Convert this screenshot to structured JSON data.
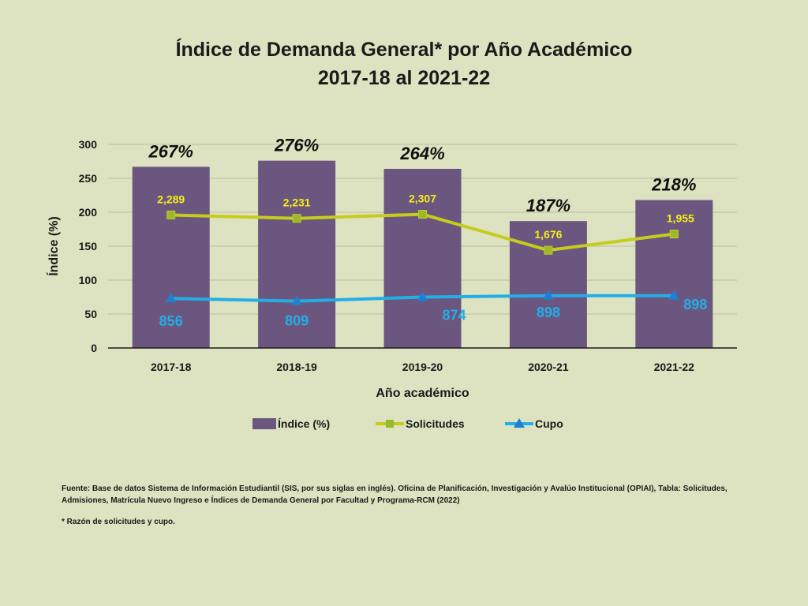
{
  "title_line1": "Índice de Demanda General* por Año Académico",
  "title_line2": "2017-18 al 2021-22",
  "chart_data": {
    "type": "bar",
    "categories": [
      "2017-18",
      "2018-19",
      "2019-20",
      "2020-21",
      "2021-22"
    ],
    "xlabel": "Año académico",
    "ylabel": "Índice (%)",
    "ylim": [
      0,
      300
    ],
    "yticks": [
      0,
      50,
      100,
      150,
      200,
      250,
      300
    ],
    "grid": true,
    "legend_position": "bottom",
    "series": [
      {
        "name": "Índice (%)",
        "kind": "bar",
        "color": "#6b567f",
        "values": [
          267,
          276,
          264,
          187,
          218
        ],
        "labels": [
          "267%",
          "276%",
          "264%",
          "187%",
          "218%"
        ]
      },
      {
        "name": "Solicitudes",
        "kind": "line",
        "marker": "square",
        "color": "#c5cc1e",
        "label_color": "#f5ee19",
        "values": [
          196,
          191,
          197,
          144,
          168
        ],
        "labels": [
          "2,289",
          "2,231",
          "2,307",
          "1,676",
          "1,955"
        ]
      },
      {
        "name": "Cupo",
        "kind": "line",
        "marker": "triangle",
        "color": "#23aee8",
        "label_color": "#23aee8",
        "values": [
          73,
          69,
          75,
          77,
          77
        ],
        "labels": [
          "856",
          "809",
          "874",
          "898",
          "898"
        ]
      }
    ]
  },
  "footnote_source": "Fuente: Base de datos Sistema de Información Estudiantil (SIS, por sus siglas en inglés). Oficina de Planificación, Investigación y Avalúo Institucional (OPIAI), Tabla: Solicitudes, Admisiones, Matrícula Nuevo Ingreso e Índices de Demanda General por Facultad y Programa-RCM (2022)",
  "footnote_note": "* Razón de solicitudes y cupo."
}
